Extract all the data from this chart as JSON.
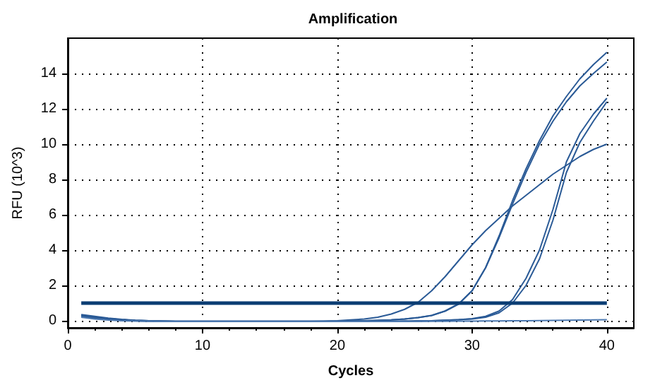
{
  "chart_data": {
    "type": "line",
    "title": "Amplification",
    "xlabel": "Cycles",
    "ylabel": "RFU (10^3)",
    "x": [
      1,
      2,
      3,
      4,
      5,
      6,
      7,
      8,
      9,
      10,
      11,
      12,
      13,
      14,
      15,
      16,
      17,
      18,
      19,
      20,
      21,
      22,
      23,
      24,
      25,
      26,
      27,
      28,
      29,
      30,
      31,
      32,
      33,
      34,
      35,
      36,
      37,
      38,
      39,
      40
    ],
    "xlim": [
      0,
      42
    ],
    "xticks": [
      0,
      10,
      20,
      30,
      40
    ],
    "ylim": [
      -0.4,
      16
    ],
    "yticks": [
      0,
      2,
      4,
      6,
      8,
      10,
      12,
      14
    ],
    "grid": true,
    "marker": "none",
    "line_style": "solid",
    "ref_lines": [
      {
        "axis": "y",
        "value": 1,
        "color": "#0b3d73"
      }
    ],
    "series": [
      {
        "color": "#2a5a96",
        "values": [
          0.35,
          0.25,
          0.15,
          0.08,
          0.03,
          0,
          -0.02,
          -0.03,
          -0.03,
          -0.03,
          -0.03,
          -0.03,
          -0.03,
          -0.03,
          -0.03,
          -0.03,
          -0.03,
          -0.03,
          -0.02,
          0,
          0.05,
          0.1,
          0.2,
          0.38,
          0.65,
          1.05,
          1.7,
          2.5,
          3.4,
          4.3,
          5.1,
          5.8,
          6.5,
          7.1,
          7.7,
          8.3,
          8.8,
          9.3,
          9.7,
          10.0
        ]
      },
      {
        "color": "#2a5a96",
        "values": [
          0.3,
          0.2,
          0.12,
          0.06,
          0.02,
          0,
          -0.02,
          -0.03,
          -0.03,
          -0.03,
          -0.03,
          -0.03,
          -0.03,
          -0.03,
          -0.03,
          -0.03,
          -0.03,
          -0.03,
          -0.03,
          -0.02,
          -0.01,
          0,
          0.02,
          0.05,
          0.1,
          0.18,
          0.3,
          0.55,
          0.95,
          1.7,
          3.0,
          4.8,
          6.8,
          8.6,
          10.2,
          11.6,
          12.7,
          13.7,
          14.5,
          15.2
        ]
      },
      {
        "color": "#2a5a96",
        "values": [
          0.3,
          0.2,
          0.12,
          0.06,
          0.02,
          0,
          -0.02,
          -0.03,
          -0.03,
          -0.03,
          -0.03,
          -0.03,
          -0.03,
          -0.03,
          -0.03,
          -0.03,
          -0.03,
          -0.03,
          -0.03,
          -0.02,
          -0.01,
          0,
          0.02,
          0.05,
          0.1,
          0.18,
          0.3,
          0.55,
          0.95,
          1.7,
          3.0,
          4.7,
          6.6,
          8.4,
          10.0,
          11.3,
          12.4,
          13.3,
          14.0,
          14.65
        ]
      },
      {
        "color": "#2a5a96",
        "values": [
          0.25,
          0.15,
          0.08,
          0.03,
          0,
          -0.02,
          -0.03,
          -0.04,
          -0.04,
          -0.04,
          -0.04,
          -0.04,
          -0.04,
          -0.04,
          -0.04,
          -0.04,
          -0.04,
          -0.04,
          -0.04,
          -0.04,
          -0.04,
          -0.04,
          -0.03,
          -0.03,
          -0.02,
          -0.01,
          0,
          0.03,
          0.06,
          0.12,
          0.25,
          0.55,
          1.2,
          2.4,
          4.0,
          6.3,
          9.0,
          10.6,
          11.7,
          12.6
        ]
      },
      {
        "color": "#2a5a96",
        "values": [
          0.25,
          0.15,
          0.08,
          0.03,
          0,
          -0.02,
          -0.03,
          -0.04,
          -0.04,
          -0.04,
          -0.04,
          -0.04,
          -0.04,
          -0.04,
          -0.04,
          -0.04,
          -0.04,
          -0.04,
          -0.04,
          -0.04,
          -0.04,
          -0.04,
          -0.03,
          -0.03,
          -0.02,
          -0.01,
          0,
          0.03,
          0.06,
          0.1,
          0.2,
          0.45,
          1.0,
          2.0,
          3.5,
          5.7,
          8.4,
          10.1,
          11.3,
          12.4
        ]
      },
      {
        "color": "#4d79b0",
        "values": [
          0.2,
          0.1,
          0.04,
          0,
          -0.02,
          -0.03,
          -0.04,
          -0.04,
          -0.04,
          -0.04,
          -0.04,
          -0.04,
          -0.04,
          -0.04,
          -0.04,
          -0.04,
          -0.04,
          -0.04,
          -0.04,
          -0.04,
          -0.04,
          -0.04,
          -0.04,
          -0.04,
          -0.04,
          -0.04,
          -0.03,
          -0.03,
          -0.02,
          -0.02,
          -0.01,
          -0.01,
          0,
          0,
          0.01,
          0.02,
          0.03,
          0.04,
          0.05,
          0.06
        ]
      }
    ]
  }
}
